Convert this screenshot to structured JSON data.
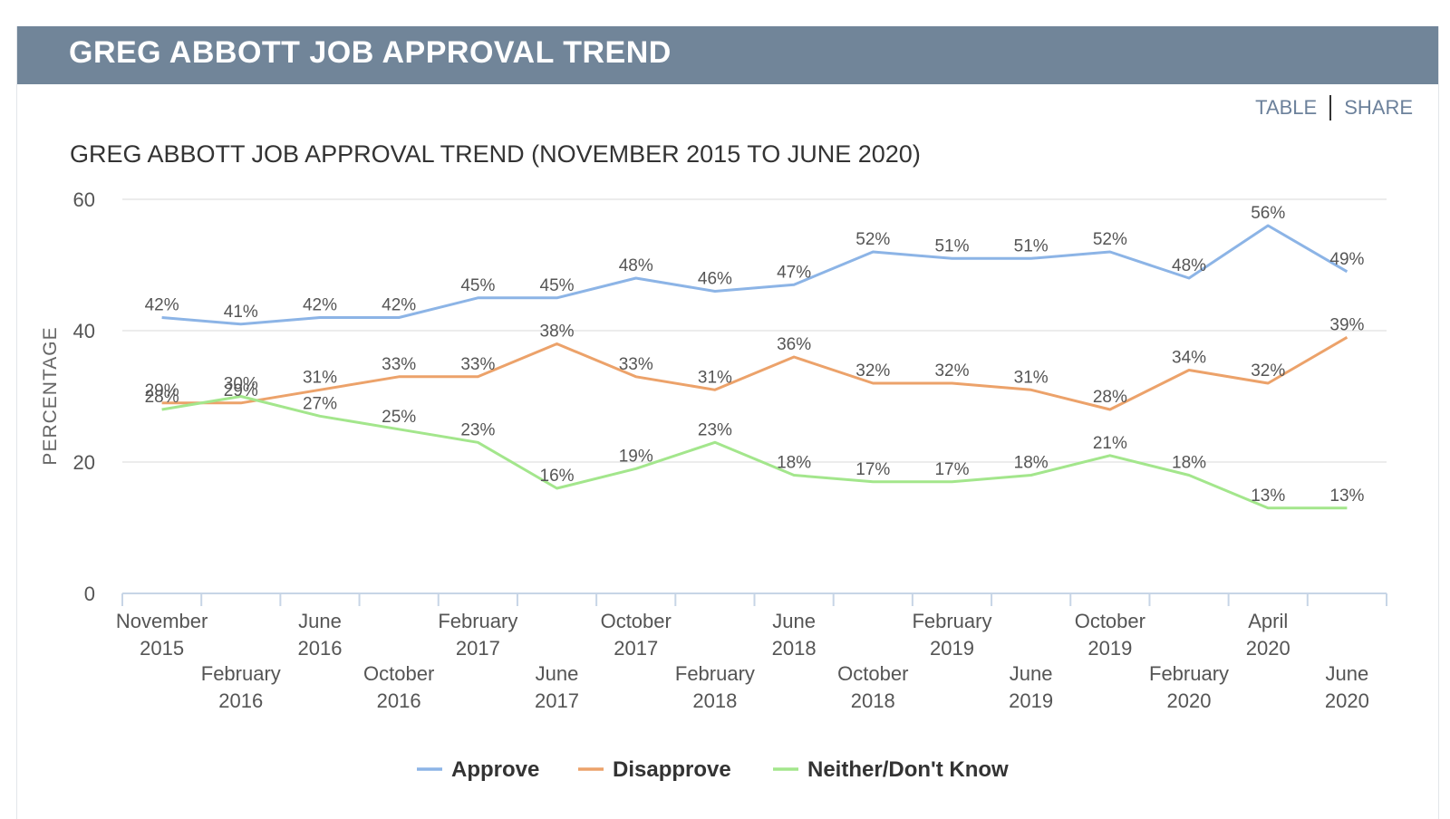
{
  "header": {
    "title": "GREG ABBOTT JOB APPROVAL TREND"
  },
  "toolbar": {
    "table_label": "TABLE",
    "share_label": "SHARE"
  },
  "colors": {
    "approve": "#8cb4e6",
    "disapprove": "#eca26a",
    "neither": "#a3e68c",
    "header_bg": "#718599"
  },
  "chart_data": {
    "type": "line",
    "title": "GREG ABBOTT JOB APPROVAL TREND (NOVEMBER 2015 TO JUNE 2020)",
    "xlabel": "",
    "ylabel": "PERCENTAGE",
    "ylim": [
      0,
      60
    ],
    "yticks": [
      0,
      20,
      40,
      60
    ],
    "grid": true,
    "legend_position": "bottom",
    "categories": [
      [
        "November",
        "2015"
      ],
      [
        "February",
        "2016"
      ],
      [
        "June",
        "2016"
      ],
      [
        "October",
        "2016"
      ],
      [
        "February",
        "2017"
      ],
      [
        "June",
        "2017"
      ],
      [
        "October",
        "2017"
      ],
      [
        "February",
        "2018"
      ],
      [
        "June",
        "2018"
      ],
      [
        "October",
        "2018"
      ],
      [
        "February",
        "2019"
      ],
      [
        "June",
        "2019"
      ],
      [
        "October",
        "2019"
      ],
      [
        "February",
        "2020"
      ],
      [
        "April",
        "2020"
      ],
      [
        "June",
        "2020"
      ]
    ],
    "series": [
      {
        "name": "Approve",
        "color": "#8cb4e6",
        "values": [
          42,
          41,
          42,
          42,
          45,
          45,
          48,
          46,
          47,
          52,
          51,
          51,
          52,
          48,
          56,
          49
        ]
      },
      {
        "name": "Disapprove",
        "color": "#eca26a",
        "values": [
          29,
          29,
          31,
          33,
          33,
          38,
          33,
          31,
          36,
          32,
          32,
          31,
          28,
          34,
          32,
          39
        ]
      },
      {
        "name": "Neither/Don't Know",
        "color": "#a3e68c",
        "values": [
          28,
          30,
          27,
          25,
          23,
          16,
          19,
          23,
          18,
          17,
          17,
          18,
          21,
          18,
          13,
          13
        ]
      }
    ]
  }
}
